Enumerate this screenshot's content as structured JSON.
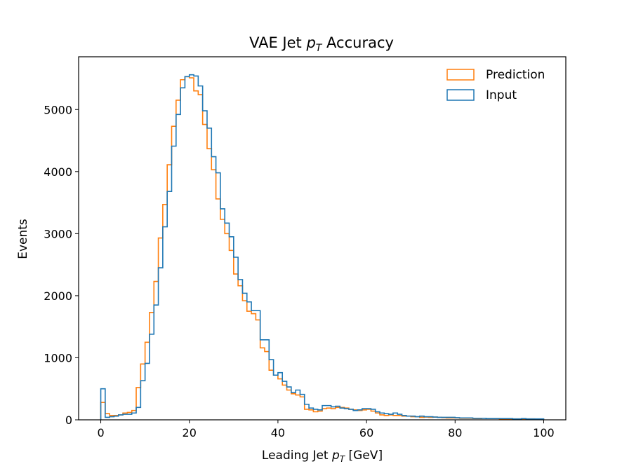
{
  "chart_data": {
    "type": "histogram-step",
    "title": "VAE Jet",
    "title_symbol": "p",
    "title_subscript": "T",
    "title_suffix": "Accuracy",
    "xlabel": "Leading Jet",
    "xlabel_symbol": "p",
    "xlabel_subscript": "T",
    "xlabel_suffix": "[GeV]",
    "ylabel": "Events",
    "xlim": [
      -5,
      105
    ],
    "ylim": [
      0,
      5850
    ],
    "xticks": [
      0,
      20,
      40,
      60,
      80,
      100
    ],
    "yticks": [
      0,
      1000,
      2000,
      3000,
      4000,
      5000
    ],
    "legend_position": "upper right",
    "bin_edges": {
      "start": 0,
      "end": 100,
      "count": 100
    },
    "series": [
      {
        "name": "Prediction",
        "color": "#ff7f0e",
        "values": [
          280,
          100,
          70,
          70,
          80,
          110,
          120,
          150,
          520,
          900,
          1250,
          1730,
          2230,
          2930,
          3470,
          4110,
          4730,
          5150,
          5480,
          5530,
          5510,
          5300,
          5240,
          4760,
          4370,
          4030,
          3560,
          3230,
          3000,
          2730,
          2350,
          2160,
          1920,
          1750,
          1710,
          1610,
          1160,
          1100,
          800,
          720,
          660,
          560,
          480,
          420,
          400,
          370,
          170,
          160,
          130,
          140,
          180,
          190,
          180,
          200,
          200,
          190,
          170,
          160,
          150,
          160,
          170,
          140,
          110,
          80,
          70,
          80,
          70,
          70,
          60,
          60,
          50,
          50,
          40,
          45,
          40,
          45,
          40,
          35,
          30,
          30,
          30,
          25,
          25,
          25,
          20,
          20,
          25,
          20,
          20,
          20,
          15,
          15,
          15,
          15,
          15,
          15,
          15,
          15,
          10,
          10
        ]
      },
      {
        "name": "Input",
        "color": "#1f77b4",
        "values": [
          500,
          40,
          50,
          60,
          80,
          90,
          90,
          110,
          200,
          630,
          910,
          1380,
          1850,
          2450,
          3110,
          3680,
          4410,
          4920,
          5350,
          5530,
          5560,
          5540,
          5380,
          4980,
          4700,
          4240,
          3980,
          3400,
          3170,
          2950,
          2620,
          2260,
          2040,
          1900,
          1760,
          1760,
          1290,
          1290,
          970,
          720,
          760,
          620,
          530,
          440,
          480,
          410,
          250,
          190,
          170,
          160,
          230,
          230,
          210,
          220,
          190,
          180,
          170,
          150,
          160,
          180,
          180,
          170,
          130,
          110,
          100,
          90,
          110,
          90,
          70,
          60,
          60,
          50,
          60,
          50,
          50,
          45,
          40,
          40,
          40,
          40,
          35,
          30,
          30,
          30,
          25,
          25,
          25,
          20,
          20,
          20,
          20,
          20,
          20,
          15,
          15,
          20,
          15,
          15,
          15,
          15
        ]
      }
    ]
  }
}
